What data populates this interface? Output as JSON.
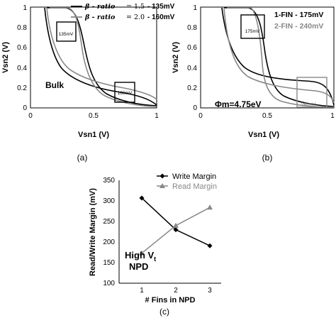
{
  "chart_data": [
    {
      "type": "line",
      "panel": "(a)",
      "xlabel": "Vsn1 (V)",
      "ylabel": "Vsn2 (V)",
      "xlim": [
        0,
        1
      ],
      "ylim": [
        0,
        1
      ],
      "xticks": [
        "0",
        "0.5",
        "1"
      ],
      "yticks": [
        "0",
        "0.2",
        "0.4",
        "0.6",
        "0.8",
        "1"
      ],
      "annotation": "Bulk",
      "legend": [
        {
          "label": "β - ratio = 1.5 - 135mV",
          "color": "#000000"
        },
        {
          "label": "β - ratio = 2.0 - 160mV",
          "color": "#888888"
        }
      ],
      "legend_prefix": "β - ratio",
      "legend_items": [
        {
          "ratio": "= 1.5",
          "margin": "- 135mV",
          "color": "#000000"
        },
        {
          "ratio": "= 2.0",
          "margin": "- 160mV",
          "color": "#888888"
        }
      ],
      "box_labels": [
        "135mV",
        "160mV"
      ]
    },
    {
      "type": "line",
      "panel": "(b)",
      "xlabel": "Vsn1 (V)",
      "ylabel": "Vsn2 (V)",
      "xlim": [
        0,
        1
      ],
      "ylim": [
        0,
        1
      ],
      "xticks": [
        "0",
        "0.5",
        "1"
      ],
      "yticks": [
        "0",
        "0.2",
        "0.4",
        "0.6",
        "0.8",
        "1"
      ],
      "annotation": "Φm=4.75eV",
      "legend": [
        {
          "label": "1-FIN - 175mV",
          "color": "#000000"
        },
        {
          "label": "2-FIN - 240mV",
          "color": "#888888"
        }
      ],
      "box_labels": [
        "175mV",
        "240mV"
      ]
    },
    {
      "type": "line",
      "panel": "(c)",
      "xlabel": "# Fins in NPD",
      "ylabel": "Read/Write Margin (mV)",
      "ylim": [
        100,
        350
      ],
      "x": [
        1,
        2,
        3
      ],
      "yticks": [
        "100",
        "150",
        "200",
        "250",
        "300",
        "350"
      ],
      "series": [
        {
          "name": "Write Margin",
          "values": [
            307,
            230,
            191
          ],
          "color": "#000000",
          "marker": "diamond"
        },
        {
          "name": "Read Margin",
          "values": [
            173,
            240,
            284
          ],
          "color": "#888888",
          "marker": "triangle"
        }
      ],
      "annotation_line1": "High V",
      "annotation_sub": "t",
      "annotation_line2": "NPD"
    }
  ]
}
